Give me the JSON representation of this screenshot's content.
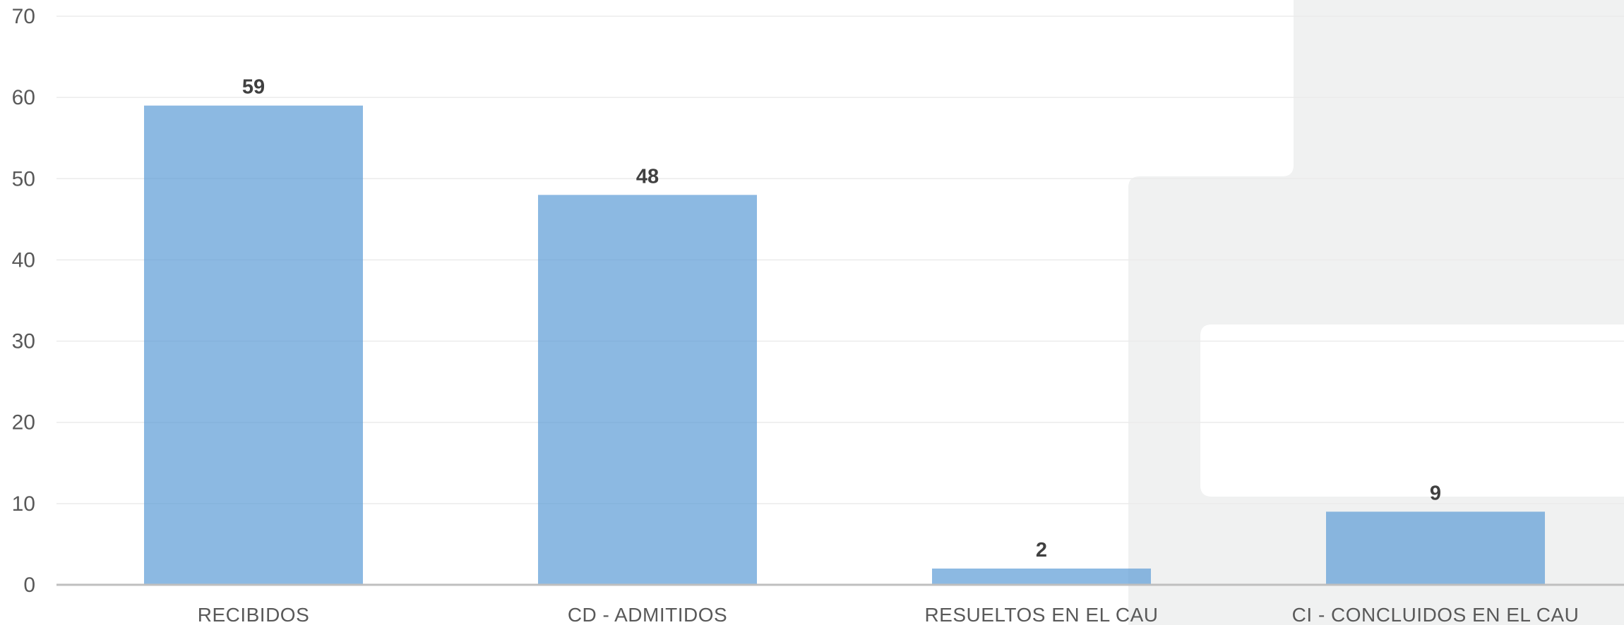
{
  "chart_data": {
    "type": "bar",
    "title": "",
    "xlabel": "",
    "ylabel": "",
    "categories": [
      "RECIBIDOS",
      "CD - ADMITIDOS",
      "RESUELTOS EN EL CAU",
      "CI - CONCLUIDOS EN EL CAU"
    ],
    "values": [
      59,
      48,
      2,
      9
    ],
    "data_labels": [
      "59",
      "48",
      "2",
      "9"
    ],
    "ylim": [
      0,
      70
    ],
    "yticks": [
      0,
      10,
      20,
      30,
      40,
      50,
      60,
      70
    ],
    "ytick_labels": [
      "0",
      "10",
      "20",
      "30",
      "40",
      "50",
      "60",
      "70"
    ],
    "grid": true,
    "legend": "none",
    "bar_color": "#5b9bd5"
  }
}
